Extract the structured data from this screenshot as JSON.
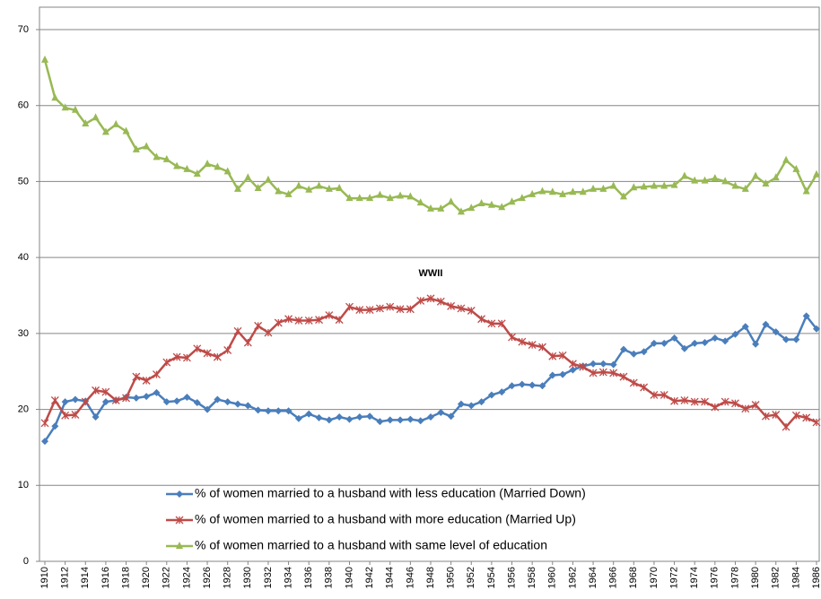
{
  "chart_data": {
    "type": "line",
    "annotation": "WWII",
    "x": [
      1910,
      1911,
      1912,
      1913,
      1914,
      1915,
      1916,
      1917,
      1918,
      1919,
      1920,
      1921,
      1922,
      1923,
      1924,
      1925,
      1926,
      1927,
      1928,
      1929,
      1930,
      1931,
      1932,
      1933,
      1934,
      1935,
      1936,
      1937,
      1938,
      1939,
      1940,
      1941,
      1942,
      1943,
      1944,
      1945,
      1946,
      1947,
      1948,
      1949,
      1950,
      1951,
      1952,
      1953,
      1954,
      1955,
      1956,
      1957,
      1958,
      1959,
      1960,
      1961,
      1962,
      1963,
      1964,
      1965,
      1966,
      1967,
      1968,
      1969,
      1970,
      1971,
      1972,
      1973,
      1974,
      1975,
      1976,
      1977,
      1978,
      1979,
      1980,
      1981,
      1982,
      1983,
      1984,
      1985,
      1986
    ],
    "xlim": [
      1910,
      1986
    ],
    "xticks": [
      1910,
      1912,
      1914,
      1916,
      1918,
      1920,
      1922,
      1924,
      1926,
      1928,
      1930,
      1932,
      1934,
      1936,
      1938,
      1940,
      1942,
      1944,
      1946,
      1948,
      1950,
      1952,
      1954,
      1956,
      1958,
      1960,
      1962,
      1964,
      1966,
      1968,
      1970,
      1972,
      1974,
      1976,
      1978,
      1980,
      1982,
      1984,
      1986
    ],
    "ylim": [
      0,
      70
    ],
    "yticks": [
      0,
      10,
      20,
      30,
      40,
      50,
      60,
      70
    ],
    "grid": true,
    "legend": "lower center",
    "series": [
      {
        "name": "% of women married to a husband with less education (Married Down)",
        "color": "#4a7ebb",
        "marker": "diamond",
        "values": [
          15.8,
          17.8,
          21,
          21.3,
          21.1,
          19,
          21,
          21.2,
          21.6,
          21.5,
          21.7,
          22.2,
          21,
          21.1,
          21.6,
          20.9,
          20,
          21.3,
          21,
          20.7,
          20.5,
          19.9,
          19.8,
          19.8,
          19.8,
          18.8,
          19.4,
          18.9,
          18.6,
          19,
          18.7,
          19,
          19.1,
          18.4,
          18.6,
          18.6,
          18.7,
          18.5,
          19,
          19.6,
          19.1,
          20.7,
          20.5,
          21,
          21.9,
          22.3,
          23.1,
          23.3,
          23.2,
          23.1,
          24.5,
          24.6,
          25.2,
          25.7,
          26,
          26,
          25.9,
          27.9,
          27.3,
          27.6,
          28.7,
          28.7,
          29.4,
          28,
          28.7,
          28.8,
          29.4,
          29,
          29.9,
          30.9,
          28.6,
          31.2,
          30.2,
          29.2,
          29.2,
          32.3,
          30.6
        ]
      },
      {
        "name": "% of women married to a husband with more education (Married Up)",
        "color": "#be4b48",
        "marker": "star",
        "values": [
          18.2,
          21.2,
          19.2,
          19.3,
          21,
          22.5,
          22.3,
          21.2,
          21.5,
          24.3,
          23.8,
          24.6,
          26.2,
          26.9,
          26.8,
          28,
          27.4,
          26.9,
          27.8,
          30.3,
          28.8,
          31,
          30.1,
          31.4,
          31.9,
          31.7,
          31.7,
          31.8,
          32.4,
          31.8,
          33.5,
          33.1,
          33.1,
          33.3,
          33.5,
          33.2,
          33.2,
          34.3,
          34.6,
          34.2,
          33.6,
          33.3,
          33,
          31.9,
          31.3,
          31.3,
          29.5,
          28.9,
          28.5,
          28.2,
          27,
          27.1,
          26,
          25.6,
          24.8,
          24.9,
          24.8,
          24.3,
          23.5,
          22.9,
          21.9,
          21.9,
          21.1,
          21.2,
          21,
          21,
          20.3,
          21,
          20.8,
          20.1,
          20.6,
          19.1,
          19.3,
          17.7,
          19.2,
          18.9,
          18.3
        ]
      },
      {
        "name": "% of women married to a husband with same level of education",
        "color": "#98b954",
        "marker": "triangle",
        "values": [
          66,
          61,
          59.7,
          59.4,
          57.6,
          58.4,
          56.5,
          57.5,
          56.6,
          54.2,
          54.6,
          53.2,
          52.9,
          52,
          51.6,
          51,
          52.3,
          51.9,
          51.3,
          49,
          50.5,
          49.1,
          50.2,
          48.7,
          48.3,
          49.4,
          48.9,
          49.4,
          49,
          49.1,
          47.8,
          47.8,
          47.8,
          48.2,
          47.8,
          48.1,
          48,
          47.2,
          46.4,
          46.4,
          47.3,
          46,
          46.5,
          47.1,
          46.9,
          46.6,
          47.3,
          47.8,
          48.3,
          48.7,
          48.6,
          48.3,
          48.6,
          48.6,
          49,
          49,
          49.4,
          48,
          49.2,
          49.3,
          49.4,
          49.4,
          49.5,
          50.7,
          50.1,
          50.1,
          50.4,
          50,
          49.4,
          49,
          50.7,
          49.7,
          50.5,
          52.8,
          51.6,
          48.7,
          50.9
        ]
      }
    ]
  }
}
